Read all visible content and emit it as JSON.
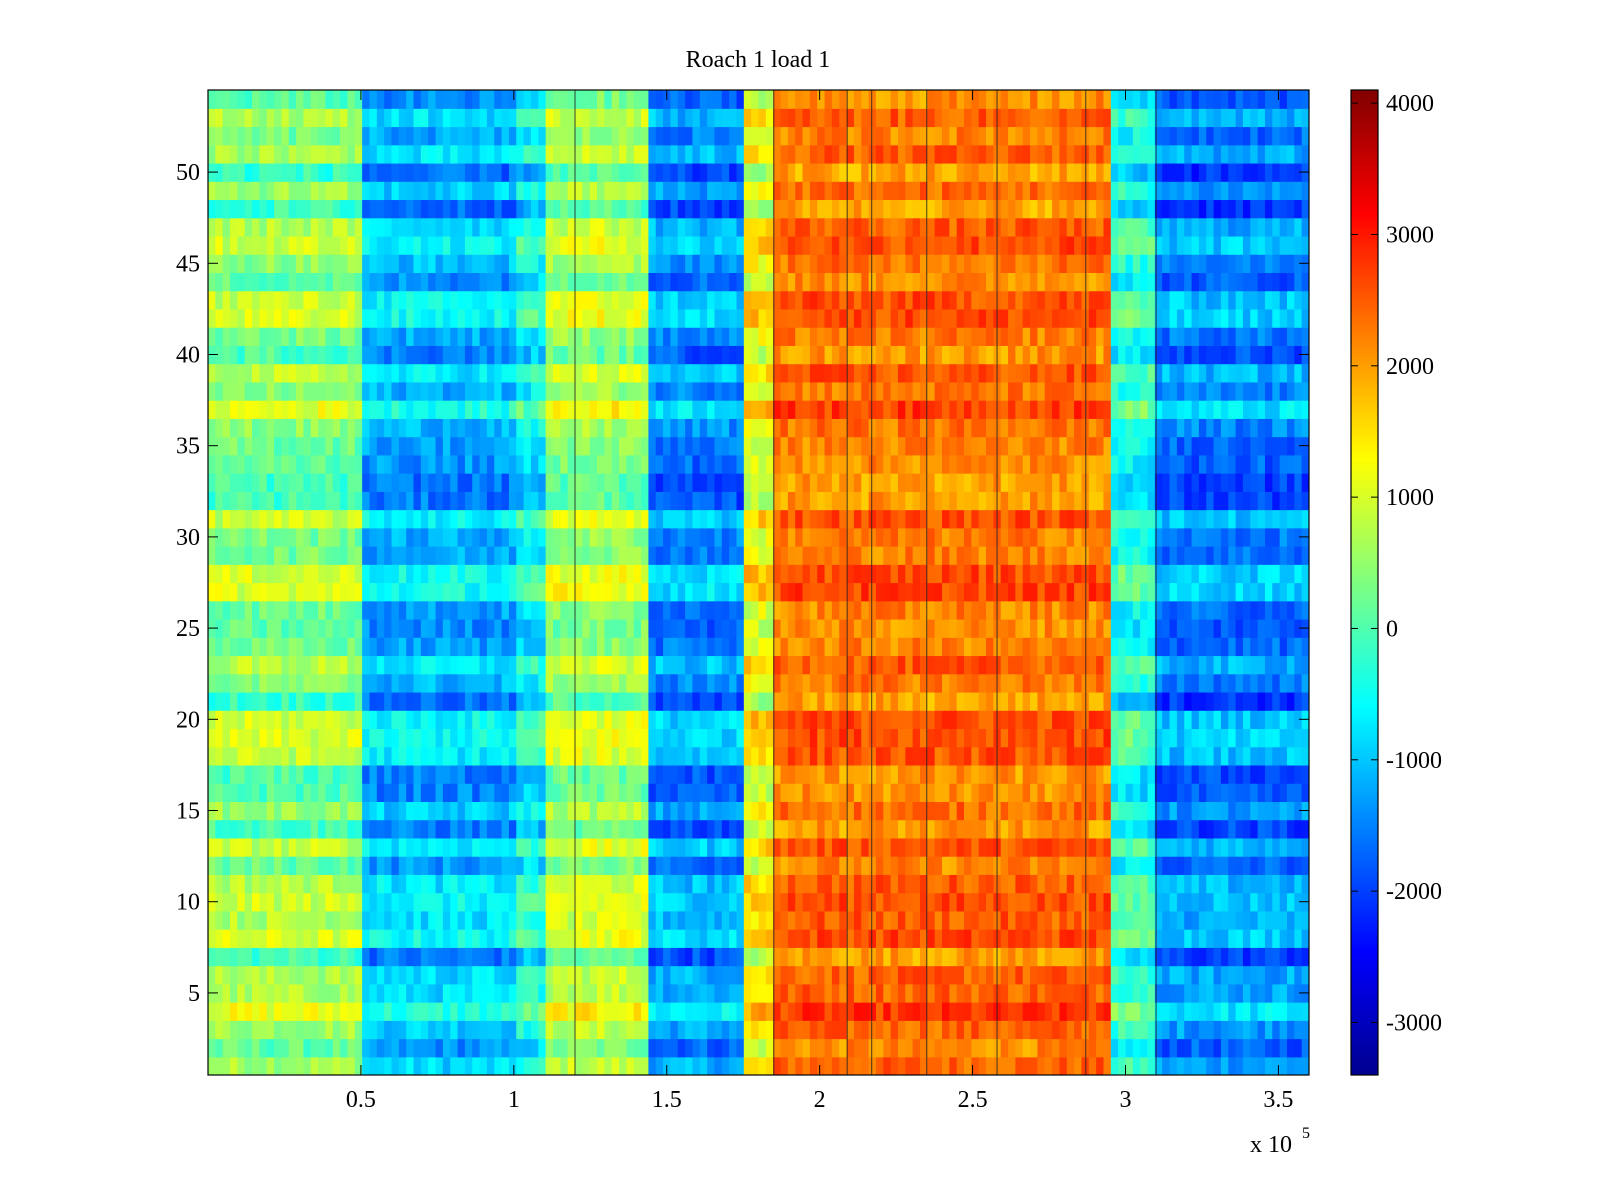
{
  "chart_data": {
    "type": "heatmap",
    "title": "Roach 1 load 1",
    "xlabel": "",
    "ylabel": "",
    "x_multiplier_label": "x 10",
    "x_multiplier_exponent": "5",
    "xlim": [
      0,
      3.6
    ],
    "ylim": [
      0.5,
      54.5
    ],
    "x_ticks": [
      0.5,
      1,
      1.5,
      2,
      2.5,
      3,
      3.5
    ],
    "x_tick_labels": [
      "0.5",
      "1",
      "1.5",
      "2",
      "2.5",
      "3",
      "3.5"
    ],
    "y_ticks": [
      5,
      10,
      15,
      20,
      25,
      30,
      35,
      40,
      45,
      50
    ],
    "y_tick_labels": [
      "5",
      "10",
      "15",
      "20",
      "25",
      "30",
      "35",
      "40",
      "45",
      "50"
    ],
    "rows": 54,
    "colormap": "jet",
    "colorbar": {
      "range": [
        -3400,
        4100
      ],
      "ticks": [
        4000,
        3000,
        2000,
        1000,
        0,
        -1000,
        -2000,
        -3000
      ],
      "tick_labels": [
        "4000",
        "3000",
        "2000",
        "1000",
        "0",
        "-1000",
        "-2000",
        "-3000"
      ],
      "position": "right"
    },
    "column_bands": [
      {
        "x_start": 0.0,
        "x_end": 0.5,
        "mean_value": 400
      },
      {
        "x_start": 0.5,
        "x_end": 1.0,
        "mean_value": -1100
      },
      {
        "x_start": 1.0,
        "x_end": 1.1,
        "mean_value": -600
      },
      {
        "x_start": 1.1,
        "x_end": 1.45,
        "mean_value": 600
      },
      {
        "x_start": 1.45,
        "x_end": 1.75,
        "mean_value": -1400
      },
      {
        "x_start": 1.75,
        "x_end": 1.85,
        "mean_value": 1200
      },
      {
        "x_start": 1.85,
        "x_end": 2.95,
        "mean_value": 2300
      },
      {
        "x_start": 2.95,
        "x_end": 3.1,
        "mean_value": -400
      },
      {
        "x_start": 3.1,
        "x_end": 3.6,
        "mean_value": -1500
      }
    ],
    "vertical_lines_x": [
      1.2,
      1.85,
      2.09,
      2.17,
      2.35,
      2.58,
      2.87,
      3.1
    ],
    "grid": false
  }
}
